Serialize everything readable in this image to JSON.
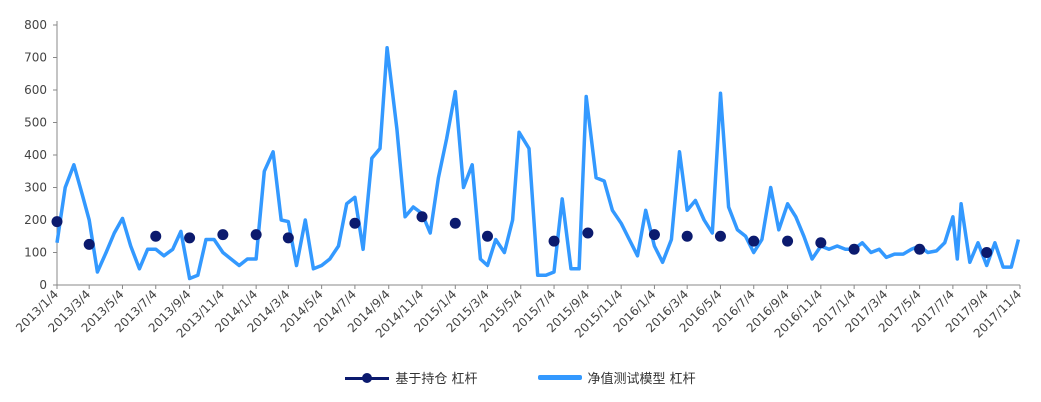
{
  "chart_data": {
    "type": "line",
    "y_ticks": [
      0,
      100,
      200,
      300,
      400,
      500,
      600,
      700,
      800
    ],
    "ylim": [
      0,
      800
    ],
    "x_labels": [
      "2013/1/4",
      "2013/3/4",
      "2013/5/4",
      "2013/7/4",
      "2013/9/4",
      "2013/11/4",
      "2014/1/4",
      "2014/3/4",
      "2014/5/4",
      "2014/7/4",
      "2014/9/4",
      "2014/11/4",
      "2015/1/4",
      "2015/3/4",
      "2015/5/4",
      "2015/7/4",
      "2015/9/4",
      "2015/11/4",
      "2016/1/4",
      "2016/3/4",
      "2016/5/4",
      "2016/7/4",
      "2016/9/4",
      "2016/11/4",
      "2017/1/4",
      "2017/3/4",
      "2017/5/4",
      "2017/7/4",
      "2017/9/4",
      "2017/11/4"
    ],
    "series": [
      {
        "name": "基于持仓 杠杆",
        "color": "#0b1a6e",
        "style": "markers",
        "points": [
          {
            "x": "2013/1/4",
            "y": 195
          },
          {
            "x": "2013/3/4",
            "y": 125
          },
          {
            "x": "2013/7/4",
            "y": 150
          },
          {
            "x": "2013/9/4",
            "y": 145
          },
          {
            "x": "2013/11/4",
            "y": 155
          },
          {
            "x": "2014/1/4",
            "y": 155
          },
          {
            "x": "2014/3/4",
            "y": 145
          },
          {
            "x": "2014/7/4",
            "y": 190
          },
          {
            "x": "2014/11/4",
            "y": 210
          },
          {
            "x": "2015/1/4",
            "y": 190
          },
          {
            "x": "2015/3/4",
            "y": 150
          },
          {
            "x": "2015/7/4",
            "y": 135
          },
          {
            "x": "2015/9/4",
            "y": 160
          },
          {
            "x": "2016/1/4",
            "y": 155
          },
          {
            "x": "2016/3/4",
            "y": 150
          },
          {
            "x": "2016/5/4",
            "y": 150
          },
          {
            "x": "2016/7/4",
            "y": 135
          },
          {
            "x": "2016/9/4",
            "y": 135
          },
          {
            "x": "2016/11/4",
            "y": 130
          },
          {
            "x": "2017/1/4",
            "y": 110
          },
          {
            "x": "2017/5/4",
            "y": 110
          },
          {
            "x": "2017/9/4",
            "y": 100
          }
        ]
      },
      {
        "name": "净值测试模型 杠杆",
        "color": "#3399ff",
        "style": "line",
        "points": [
          {
            "x": "2013/1/4",
            "y": 130
          },
          {
            "x": "2013/1/19",
            "y": 300
          },
          {
            "x": "2013/2/4",
            "y": 370
          },
          {
            "x": "2013/2/19",
            "y": 280
          },
          {
            "x": "2013/3/4",
            "y": 200
          },
          {
            "x": "2013/3/19",
            "y": 40
          },
          {
            "x": "2013/4/4",
            "y": 100
          },
          {
            "x": "2013/4/19",
            "y": 160
          },
          {
            "x": "2013/5/4",
            "y": 205
          },
          {
            "x": "2013/5/19",
            "y": 120
          },
          {
            "x": "2013/6/4",
            "y": 50
          },
          {
            "x": "2013/6/19",
            "y": 110
          },
          {
            "x": "2013/7/4",
            "y": 110
          },
          {
            "x": "2013/7/19",
            "y": 90
          },
          {
            "x": "2013/8/4",
            "y": 110
          },
          {
            "x": "2013/8/19",
            "y": 165
          },
          {
            "x": "2013/9/4",
            "y": 20
          },
          {
            "x": "2013/9/19",
            "y": 30
          },
          {
            "x": "2013/10/4",
            "y": 140
          },
          {
            "x": "2013/10/19",
            "y": 140
          },
          {
            "x": "2013/11/4",
            "y": 100
          },
          {
            "x": "2013/11/19",
            "y": 80
          },
          {
            "x": "2013/12/4",
            "y": 60
          },
          {
            "x": "2013/12/19",
            "y": 80
          },
          {
            "x": "2014/1/4",
            "y": 80
          },
          {
            "x": "2014/1/19",
            "y": 350
          },
          {
            "x": "2014/2/4",
            "y": 410
          },
          {
            "x": "2014/2/19",
            "y": 200
          },
          {
            "x": "2014/3/4",
            "y": 195
          },
          {
            "x": "2014/3/19",
            "y": 60
          },
          {
            "x": "2014/4/4",
            "y": 200
          },
          {
            "x": "2014/4/19",
            "y": 50
          },
          {
            "x": "2014/5/4",
            "y": 60
          },
          {
            "x": "2014/5/19",
            "y": 80
          },
          {
            "x": "2014/6/4",
            "y": 120
          },
          {
            "x": "2014/6/19",
            "y": 250
          },
          {
            "x": "2014/7/4",
            "y": 270
          },
          {
            "x": "2014/7/19",
            "y": 110
          },
          {
            "x": "2014/8/4",
            "y": 390
          },
          {
            "x": "2014/8/19",
            "y": 420
          },
          {
            "x": "2014/9/1",
            "y": 730
          },
          {
            "x": "2014/9/19",
            "y": 480
          },
          {
            "x": "2014/10/4",
            "y": 210
          },
          {
            "x": "2014/10/19",
            "y": 240
          },
          {
            "x": "2014/11/4",
            "y": 220
          },
          {
            "x": "2014/11/19",
            "y": 160
          },
          {
            "x": "2014/12/4",
            "y": 330
          },
          {
            "x": "2014/12/19",
            "y": 450
          },
          {
            "x": "2015/1/4",
            "y": 595
          },
          {
            "x": "2015/1/19",
            "y": 300
          },
          {
            "x": "2015/2/4",
            "y": 370
          },
          {
            "x": "2015/2/19",
            "y": 80
          },
          {
            "x": "2015/3/4",
            "y": 60
          },
          {
            "x": "2015/3/19",
            "y": 140
          },
          {
            "x": "2015/4/4",
            "y": 100
          },
          {
            "x": "2015/4/19",
            "y": 200
          },
          {
            "x": "2015/5/1",
            "y": 470
          },
          {
            "x": "2015/5/19",
            "y": 420
          },
          {
            "x": "2015/6/4",
            "y": 30
          },
          {
            "x": "2015/6/19",
            "y": 30
          },
          {
            "x": "2015/7/4",
            "y": 40
          },
          {
            "x": "2015/7/19",
            "y": 265
          },
          {
            "x": "2015/8/4",
            "y": 50
          },
          {
            "x": "2015/8/19",
            "y": 50
          },
          {
            "x": "2015/9/1",
            "y": 580
          },
          {
            "x": "2015/9/19",
            "y": 330
          },
          {
            "x": "2015/10/4",
            "y": 320
          },
          {
            "x": "2015/10/19",
            "y": 230
          },
          {
            "x": "2015/11/4",
            "y": 190
          },
          {
            "x": "2015/11/19",
            "y": 140
          },
          {
            "x": "2015/12/4",
            "y": 90
          },
          {
            "x": "2015/12/19",
            "y": 230
          },
          {
            "x": "2016/1/4",
            "y": 120
          },
          {
            "x": "2016/1/19",
            "y": 70
          },
          {
            "x": "2016/2/4",
            "y": 140
          },
          {
            "x": "2016/2/19",
            "y": 410
          },
          {
            "x": "2016/3/4",
            "y": 230
          },
          {
            "x": "2016/3/19",
            "y": 260
          },
          {
            "x": "2016/4/4",
            "y": 200
          },
          {
            "x": "2016/4/19",
            "y": 160
          },
          {
            "x": "2016/5/4",
            "y": 590
          },
          {
            "x": "2016/5/19",
            "y": 240
          },
          {
            "x": "2016/6/4",
            "y": 170
          },
          {
            "x": "2016/6/19",
            "y": 150
          },
          {
            "x": "2016/7/4",
            "y": 100
          },
          {
            "x": "2016/7/19",
            "y": 140
          },
          {
            "x": "2016/8/4",
            "y": 300
          },
          {
            "x": "2016/8/19",
            "y": 170
          },
          {
            "x": "2016/9/4",
            "y": 250
          },
          {
            "x": "2016/9/19",
            "y": 210
          },
          {
            "x": "2016/10/4",
            "y": 150
          },
          {
            "x": "2016/10/19",
            "y": 80
          },
          {
            "x": "2016/11/4",
            "y": 120
          },
          {
            "x": "2016/11/19",
            "y": 110
          },
          {
            "x": "2016/12/4",
            "y": 120
          },
          {
            "x": "2016/12/19",
            "y": 110
          },
          {
            "x": "2017/1/4",
            "y": 110
          },
          {
            "x": "2017/1/19",
            "y": 130
          },
          {
            "x": "2017/2/4",
            "y": 100
          },
          {
            "x": "2017/2/19",
            "y": 110
          },
          {
            "x": "2017/3/4",
            "y": 85
          },
          {
            "x": "2017/3/19",
            "y": 95
          },
          {
            "x": "2017/4/4",
            "y": 95
          },
          {
            "x": "2017/4/19",
            "y": 110
          },
          {
            "x": "2017/5/4",
            "y": 120
          },
          {
            "x": "2017/5/19",
            "y": 100
          },
          {
            "x": "2017/6/4",
            "y": 105
          },
          {
            "x": "2017/6/19",
            "y": 130
          },
          {
            "x": "2017/7/4",
            "y": 210
          },
          {
            "x": "2017/7/12",
            "y": 80
          },
          {
            "x": "2017/7/19",
            "y": 250
          },
          {
            "x": "2017/8/4",
            "y": 70
          },
          {
            "x": "2017/8/19",
            "y": 130
          },
          {
            "x": "2017/9/4",
            "y": 60
          },
          {
            "x": "2017/9/19",
            "y": 130
          },
          {
            "x": "2017/10/4",
            "y": 55
          },
          {
            "x": "2017/10/19",
            "y": 55
          },
          {
            "x": "2017/11/1",
            "y": 140
          }
        ]
      }
    ],
    "grid": false,
    "legend_position": "bottom"
  },
  "legend": {
    "series1": "基于持仓 杠杆",
    "series2": "净值测试模型 杠杆"
  }
}
